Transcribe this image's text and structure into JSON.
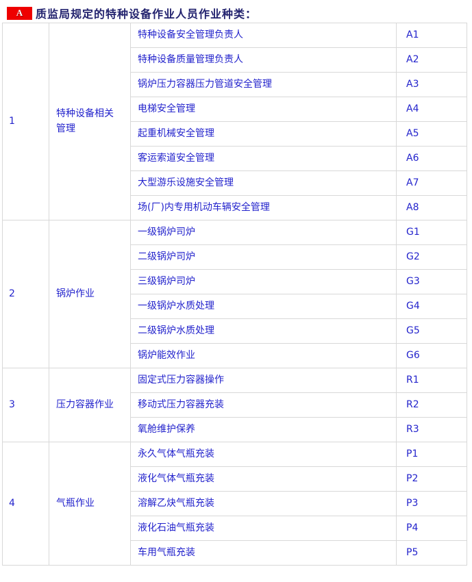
{
  "title": {
    "badge": "A",
    "text": "质监局规定的特种设备作业人员作业种类："
  },
  "colors": {
    "accent_red": "#EE0000",
    "title_navy": "#22226E",
    "cell_blue": "#2323CC",
    "border_gray": "#D8D8D8"
  },
  "table": {
    "groups": [
      {
        "no": "1",
        "category": "特种设备相关管理",
        "items": [
          {
            "name": "特种设备安全管理负责人",
            "code": "A1"
          },
          {
            "name": "特种设备质量管理负责人",
            "code": "A2"
          },
          {
            "name": "锅炉压力容器压力管道安全管理",
            "code": "A3"
          },
          {
            "name": "电梯安全管理",
            "code": "A4"
          },
          {
            "name": "起重机械安全管理",
            "code": "A5"
          },
          {
            "name": "客运索道安全管理",
            "code": "A6"
          },
          {
            "name": "大型游乐设施安全管理",
            "code": "A7"
          },
          {
            "name": "场(厂)内专用机动车辆安全管理",
            "code": "A8"
          }
        ]
      },
      {
        "no": "2",
        "category": "锅炉作业",
        "items": [
          {
            "name": "一级锅炉司炉",
            "code": "G1"
          },
          {
            "name": "二级锅炉司炉",
            "code": "G2"
          },
          {
            "name": "三级锅炉司炉",
            "code": "G3"
          },
          {
            "name": "一级锅炉水质处理",
            "code": "G4"
          },
          {
            "name": "二级锅炉水质处理",
            "code": "G5"
          },
          {
            "name": "锅炉能效作业",
            "code": "G6"
          }
        ]
      },
      {
        "no": "3",
        "category": "压力容器作业",
        "items": [
          {
            "name": "固定式压力容器操作",
            "code": "R1"
          },
          {
            "name": "移动式压力容器充装",
            "code": "R2"
          },
          {
            "name": "氧舱维护保养",
            "code": "R3"
          }
        ]
      },
      {
        "no": "4",
        "category": "气瓶作业",
        "items": [
          {
            "name": "永久气体气瓶充装",
            "code": "P1"
          },
          {
            "name": "液化气体气瓶充装",
            "code": "P2"
          },
          {
            "name": "溶解乙炔气瓶充装",
            "code": "P3"
          },
          {
            "name": "液化石油气瓶充装",
            "code": "P4"
          },
          {
            "name": "车用气瓶充装",
            "code": "P5"
          }
        ]
      }
    ]
  }
}
